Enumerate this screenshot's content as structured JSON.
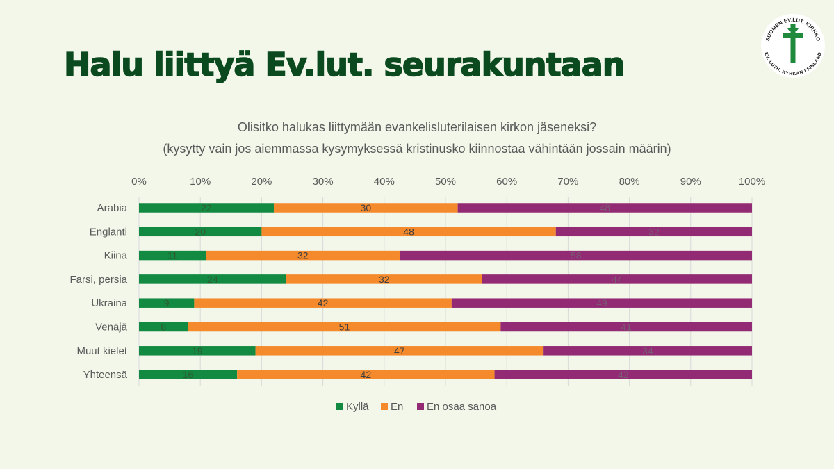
{
  "page": {
    "title": "Halu liittyä Ev.lut. seurakuntaan"
  },
  "logo": {
    "text_top": "SUOMEN EV.LUT. KIRKKO",
    "text_bottom": "EV.-LUTH. KYRKAN I FINLAND",
    "icon": "cross-icon",
    "color": "#1f8a3c"
  },
  "chart_data": {
    "type": "bar",
    "orientation": "horizontal",
    "stacked": true,
    "normalized": true,
    "title": "Olisitko halukas liittymään evankelisluterilaisen kirkon jäseneksi?",
    "subtitle": "(kysytty vain jos aiemmassa kysymyksessä kristinusko kiinnostaa vähintään jossain määrin)",
    "xlim": [
      0,
      100
    ],
    "tick_values": [
      0,
      10,
      20,
      30,
      40,
      50,
      60,
      70,
      80,
      90,
      100
    ],
    "tick_labels": [
      "0%",
      "10%",
      "20%",
      "30%",
      "40%",
      "50%",
      "60%",
      "70%",
      "80%",
      "90%",
      "100%"
    ],
    "grid": true,
    "legend_position": "bottom",
    "categories": [
      "Arabia",
      "Englanti",
      "Kiina",
      "Farsi, persia",
      "Ukraina",
      "Venäjä",
      "Muut kielet",
      "Yhteensä"
    ],
    "series": [
      {
        "name": "Kyllä",
        "color": "#138a42",
        "label_color": "#2f5a33",
        "values": [
          22,
          20,
          11,
          24,
          9,
          8,
          19,
          16
        ]
      },
      {
        "name": "En",
        "color": "#f58a2c",
        "label_color": "#3f3f3f",
        "values": [
          30,
          48,
          32,
          32,
          42,
          51,
          47,
          42
        ]
      },
      {
        "name": "En osaa sanoa",
        "color": "#922b73",
        "label_color": "#7a5a74",
        "values": [
          48,
          32,
          58,
          44,
          49,
          41,
          34,
          42
        ]
      }
    ]
  }
}
